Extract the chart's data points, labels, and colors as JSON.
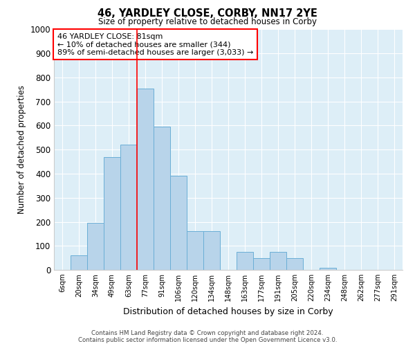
{
  "title1": "46, YARDLEY CLOSE, CORBY, NN17 2YE",
  "title2": "Size of property relative to detached houses in Corby",
  "xlabel": "Distribution of detached houses by size in Corby",
  "ylabel": "Number of detached properties",
  "categories": [
    "6sqm",
    "20sqm",
    "34sqm",
    "49sqm",
    "63sqm",
    "77sqm",
    "91sqm",
    "106sqm",
    "120sqm",
    "134sqm",
    "148sqm",
    "163sqm",
    "177sqm",
    "191sqm",
    "205sqm",
    "220sqm",
    "234sqm",
    "248sqm",
    "262sqm",
    "277sqm",
    "291sqm"
  ],
  "values": [
    0,
    60,
    195,
    470,
    520,
    755,
    595,
    390,
    160,
    160,
    0,
    75,
    50,
    75,
    50,
    0,
    10,
    0,
    0,
    0,
    0
  ],
  "bar_color": "#b8d4ea",
  "bar_edge_color": "#6aaed6",
  "background_color": "#ddeef7",
  "annotation_text": "46 YARDLEY CLOSE: 81sqm\n← 10% of detached houses are smaller (344)\n89% of semi-detached houses are larger (3,033) →",
  "annotation_box_color": "white",
  "annotation_box_edge_color": "red",
  "vline_color": "red",
  "vline_x": 4.5,
  "ylim": [
    0,
    1000
  ],
  "yticks": [
    0,
    100,
    200,
    300,
    400,
    500,
    600,
    700,
    800,
    900,
    1000
  ],
  "footer1": "Contains HM Land Registry data © Crown copyright and database right 2024.",
  "footer2": "Contains public sector information licensed under the Open Government Licence v3.0."
}
